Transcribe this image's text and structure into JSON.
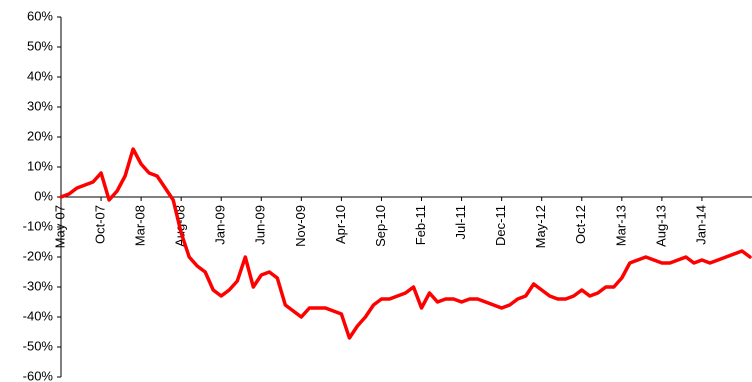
{
  "chart_data": {
    "type": "line",
    "title": "",
    "xlabel": "",
    "ylabel": "",
    "ylim": [
      -60,
      60
    ],
    "ytick_values": [
      60,
      50,
      40,
      30,
      20,
      10,
      0,
      -10,
      -20,
      -30,
      -40,
      -50,
      -60
    ],
    "ytick_labels": [
      "60%",
      "50%",
      "40%",
      "30%",
      "20%",
      "10%",
      "0%",
      "-10%",
      "-20%",
      "-30%",
      "-40%",
      "-50%",
      "-60%"
    ],
    "xtick_labels": [
      "May-07",
      "Oct-07",
      "Mar-08",
      "Aug-08",
      "Jan-09",
      "Jun-09",
      "Nov-09",
      "Apr-10",
      "Sep-10",
      "Feb-11",
      "Jul-11",
      "Dec-11",
      "May-12",
      "Oct-12",
      "Mar-13",
      "Aug-13",
      "Jan-14"
    ],
    "x_range": [
      "May-07",
      "Jul-14"
    ],
    "grid": false,
    "legend": "none",
    "series": [
      {
        "color": "#ff0000",
        "x": [
          "May-07",
          "Jun-07",
          "Jul-07",
          "Aug-07",
          "Sep-07",
          "Oct-07",
          "Nov-07",
          "Dec-07",
          "Jan-08",
          "Feb-08",
          "Mar-08",
          "Apr-08",
          "May-08",
          "Jun-08",
          "Jul-08",
          "Aug-08",
          "Sep-08",
          "Oct-08",
          "Nov-08",
          "Dec-08",
          "Jan-09",
          "Feb-09",
          "Mar-09",
          "Apr-09",
          "May-09",
          "Jun-09",
          "Jul-09",
          "Aug-09",
          "Sep-09",
          "Oct-09",
          "Nov-09",
          "Dec-09",
          "Jan-10",
          "Feb-10",
          "Mar-10",
          "Apr-10",
          "May-10",
          "Jun-10",
          "Jul-10",
          "Aug-10",
          "Sep-10",
          "Oct-10",
          "Nov-10",
          "Dec-10",
          "Jan-11",
          "Feb-11",
          "Mar-11",
          "Apr-11",
          "May-11",
          "Jun-11",
          "Jul-11",
          "Aug-11",
          "Sep-11",
          "Oct-11",
          "Nov-11",
          "Dec-11",
          "Jan-12",
          "Feb-12",
          "Mar-12",
          "Apr-12",
          "May-12",
          "Jun-12",
          "Jul-12",
          "Aug-12",
          "Sep-12",
          "Oct-12",
          "Nov-12",
          "Dec-12",
          "Jan-13",
          "Feb-13",
          "Mar-13",
          "Apr-13",
          "May-13",
          "Jun-13",
          "Jul-13",
          "Aug-13",
          "Sep-13",
          "Oct-13",
          "Nov-13",
          "Dec-13",
          "Jan-14",
          "Feb-14",
          "Mar-14",
          "Apr-14",
          "May-14",
          "Jun-14",
          "Jul-14"
        ],
        "values": [
          0,
          1,
          3,
          4,
          5,
          8,
          -1,
          2,
          7,
          16,
          11,
          8,
          7,
          3,
          -1,
          -12,
          -20,
          -23,
          -25,
          -31,
          -33,
          -31,
          -28,
          -20,
          -30,
          -26,
          -25,
          -27,
          -36,
          -38,
          -40,
          -37,
          -37,
          -37,
          -38,
          -39,
          -47,
          -43,
          -40,
          -36,
          -34,
          -34,
          -33,
          -32,
          -30,
          -37,
          -32,
          -35,
          -34,
          -34,
          -35,
          -34,
          -34,
          -35,
          -36,
          -37,
          -36,
          -34,
          -33,
          -29,
          -31,
          -33,
          -34,
          -34,
          -33,
          -31,
          -33,
          -32,
          -30,
          -30,
          -27,
          -22,
          -21,
          -20,
          -21,
          -22,
          -22,
          -21,
          -20,
          -22,
          -21,
          -22,
          -21,
          -20,
          -19,
          -18,
          -20
        ]
      }
    ]
  }
}
